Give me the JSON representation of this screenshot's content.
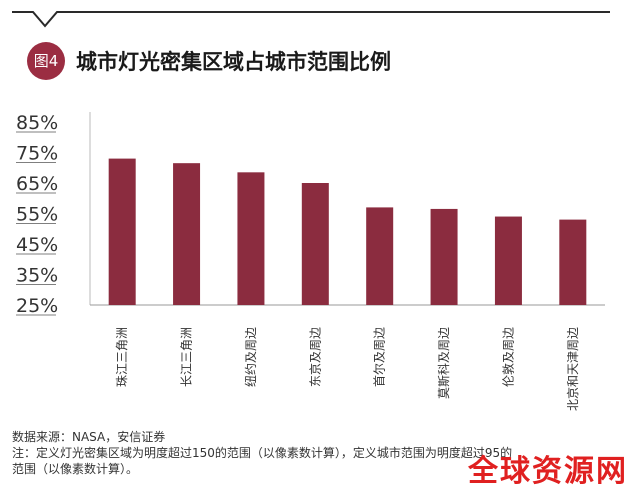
{
  "header": {
    "badge": "图4",
    "title": "城市灯光密集区域占城市范围比例"
  },
  "chart_data": {
    "type": "bar",
    "title": "城市灯光密集区域占城市范围比例",
    "categories": [
      "珠江三角洲",
      "长江三角洲",
      "纽约及周边",
      "东京及周边",
      "首尔及周边",
      "莫斯科及周边",
      "伦敦及周边",
      "北京和天津周边"
    ],
    "values": [
      73,
      71.5,
      68.5,
      65,
      57,
      56.5,
      54,
      53
    ],
    "yticks": [
      "85%",
      "75%",
      "65%",
      "55%",
      "45%",
      "35%",
      "25%"
    ],
    "ylim": [
      25,
      85
    ],
    "xlabel": "",
    "ylabel": "",
    "grid": false,
    "bar_color": "#8b2c3f"
  },
  "footer": {
    "source": "数据来源：NASA，安信证券",
    "note_line1": "注：定义灯光密集区域为明度超过150的范围（以像素数计算），定义城市范围为明度超过95的",
    "note_line2": "范围（以像素数计算）。",
    "watermark": "全球资源网"
  }
}
